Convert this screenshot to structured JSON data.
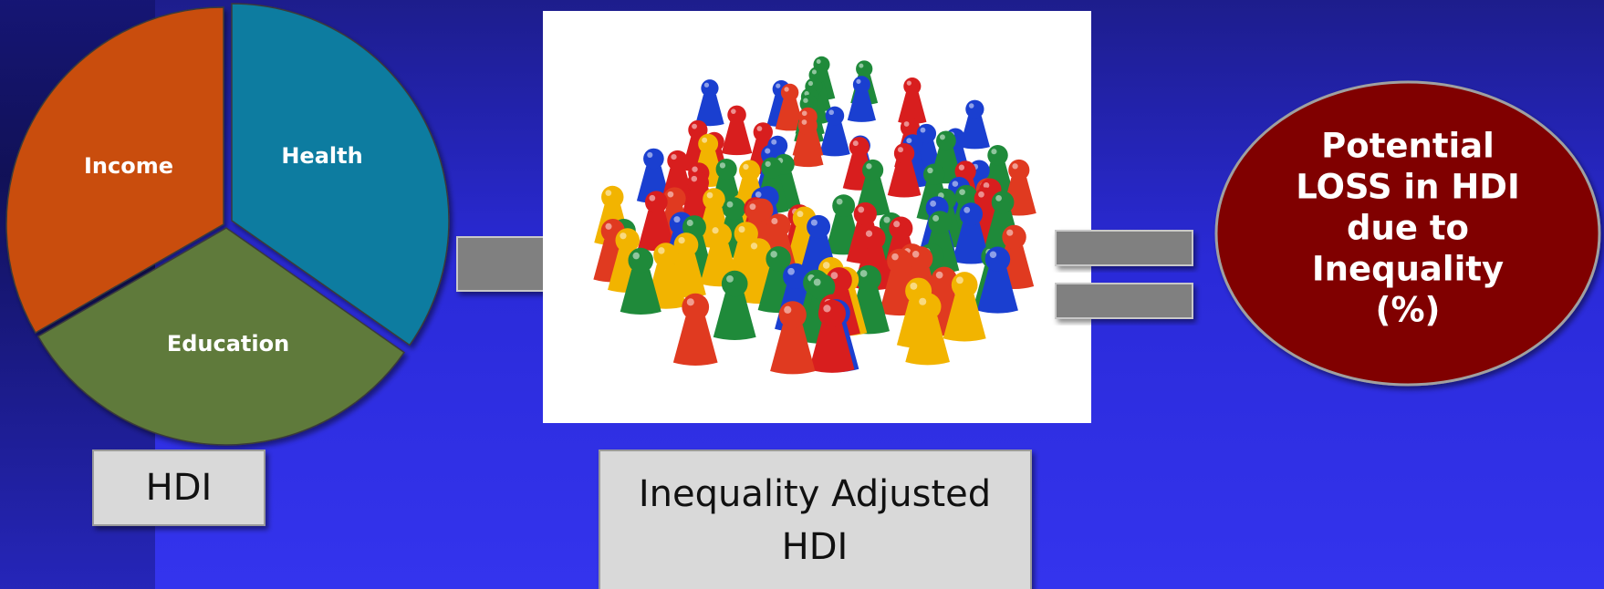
{
  "pie": {
    "labels": [
      "Health",
      "Education",
      "Income"
    ]
  },
  "hdi_box": {
    "label": "HDI"
  },
  "iahdi_box": {
    "lines": [
      "Inequality Adjusted",
      "HDI"
    ]
  },
  "loss_ellipse": {
    "lines": [
      "Potential",
      "LOSS in HDI",
      "due to",
      "Inequality",
      "(%)"
    ]
  }
}
